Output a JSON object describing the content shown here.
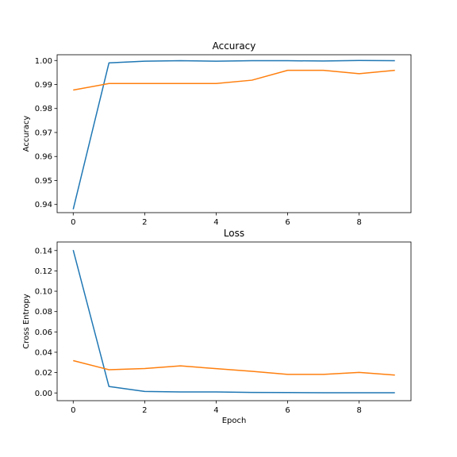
{
  "chart_data": [
    {
      "type": "line",
      "title": "Accuracy",
      "xlabel": "",
      "ylabel": "Accuracy",
      "x": [
        0,
        1,
        2,
        3,
        4,
        5,
        6,
        7,
        8,
        9
      ],
      "xlim": [
        -0.45,
        9.45
      ],
      "ylim": [
        0.9366,
        1.0024
      ],
      "xticks": [
        0,
        2,
        4,
        6,
        8
      ],
      "yticks": [
        0.94,
        0.95,
        0.96,
        0.97,
        0.98,
        0.99,
        1.0
      ],
      "ytick_labels": [
        "0.94",
        "0.95",
        "0.96",
        "0.97",
        "0.98",
        "0.99",
        "1.00"
      ],
      "grid": false,
      "series": [
        {
          "color": "#1f77b4",
          "values": [
            0.938,
            0.999,
            0.9997,
            0.9999,
            0.9997,
            0.9999,
            0.9999,
            0.9998,
            1.0,
            0.9999
          ]
        },
        {
          "color": "#ff7f0e",
          "values": [
            0.9877,
            0.9904,
            0.9904,
            0.9904,
            0.9904,
            0.9918,
            0.9959,
            0.9959,
            0.9945,
            0.9959
          ]
        }
      ]
    },
    {
      "type": "line",
      "title": "Loss",
      "xlabel": "Epoch",
      "ylabel": "Cross Entropy",
      "x": [
        0,
        1,
        2,
        3,
        4,
        5,
        6,
        7,
        8,
        9
      ],
      "xlim": [
        -0.45,
        9.45
      ],
      "ylim": [
        -0.0076,
        0.1484
      ],
      "xticks": [
        0,
        2,
        4,
        6,
        8
      ],
      "yticks": [
        0.0,
        0.02,
        0.04,
        0.06,
        0.08,
        0.1,
        0.12,
        0.14
      ],
      "ytick_labels": [
        "0.00",
        "0.02",
        "0.04",
        "0.06",
        "0.08",
        "0.10",
        "0.12",
        "0.14"
      ],
      "grid": false,
      "series": [
        {
          "color": "#1f77b4",
          "values": [
            0.1405,
            0.0063,
            0.0015,
            0.001,
            0.001,
            0.0005,
            0.0004,
            0.0002,
            0.0002,
            0.0002
          ]
        },
        {
          "color": "#ff7f0e",
          "values": [
            0.0318,
            0.0228,
            0.024,
            0.0266,
            0.0239,
            0.0213,
            0.0182,
            0.0182,
            0.0202,
            0.0176
          ]
        }
      ]
    }
  ]
}
